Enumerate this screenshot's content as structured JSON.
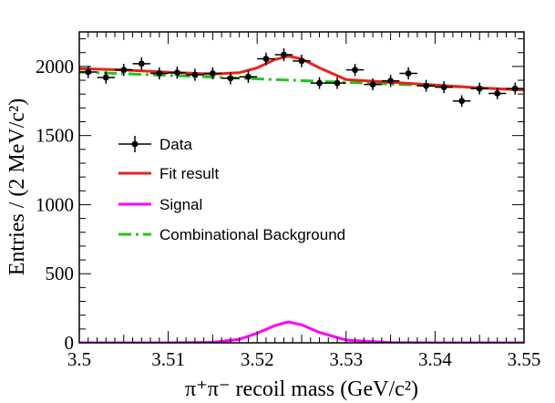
{
  "chart_data": {
    "type": "scatter",
    "title": "",
    "xlabel": "π⁺π⁻ recoil mass (GeV/c²)",
    "ylabel": "Entries / (2 MeV/c²)",
    "xlim": [
      3.5,
      3.55
    ],
    "ylim": [
      0,
      2250
    ],
    "x_ticks": [
      "3.5",
      "3.51",
      "3.52",
      "3.53",
      "3.54",
      "3.55"
    ],
    "y_ticks": [
      "0",
      "500",
      "1000",
      "1500",
      "2000"
    ],
    "grid": false,
    "legend_position": "middle-left",
    "series": [
      {
        "name": "Data",
        "kind": "points_with_errors",
        "color": "#000000",
        "x": [
          3.501,
          3.503,
          3.505,
          3.507,
          3.509,
          3.511,
          3.513,
          3.515,
          3.517,
          3.519,
          3.521,
          3.523,
          3.525,
          3.527,
          3.529,
          3.531,
          3.533,
          3.535,
          3.537,
          3.539,
          3.541,
          3.543,
          3.545,
          3.547,
          3.549
        ],
        "y": [
          1960,
          1920,
          1975,
          2020,
          1950,
          1955,
          1940,
          1950,
          1915,
          1925,
          2055,
          2085,
          2040,
          1880,
          1880,
          1975,
          1870,
          1895,
          1950,
          1860,
          1850,
          1750,
          1840,
          1805,
          1840
        ],
        "yerr": [
          44,
          44,
          44,
          45,
          44,
          44,
          44,
          44,
          44,
          44,
          45,
          46,
          45,
          43,
          43,
          44,
          43,
          44,
          44,
          43,
          43,
          42,
          43,
          42,
          43
        ]
      },
      {
        "name": "Fit result",
        "kind": "curve",
        "color": "#e8231b",
        "x": [
          3.5,
          3.505,
          3.51,
          3.515,
          3.518,
          3.52,
          3.522,
          3.5235,
          3.525,
          3.527,
          3.53,
          3.535,
          3.54,
          3.545,
          3.55
        ],
        "y": [
          1985,
          1975,
          1958,
          1945,
          1955,
          1990,
          2050,
          2075,
          2055,
          1990,
          1905,
          1885,
          1865,
          1845,
          1830
        ]
      },
      {
        "name": "Signal",
        "kind": "curve",
        "color": "#ff00ff",
        "x": [
          3.5,
          3.51,
          3.515,
          3.518,
          3.52,
          3.522,
          3.5235,
          3.525,
          3.527,
          3.53,
          3.535,
          3.54,
          3.55
        ],
        "y": [
          0,
          0,
          3,
          25,
          70,
          125,
          152,
          130,
          75,
          20,
          2,
          0,
          0
        ]
      },
      {
        "name": "Combinational Background",
        "kind": "curve",
        "dash": "dash-dot",
        "color": "#22c422",
        "x": [
          3.5,
          3.51,
          3.52,
          3.53,
          3.54,
          3.55
        ],
        "y": [
          1960,
          1935,
          1910,
          1885,
          1860,
          1830
        ]
      }
    ]
  }
}
